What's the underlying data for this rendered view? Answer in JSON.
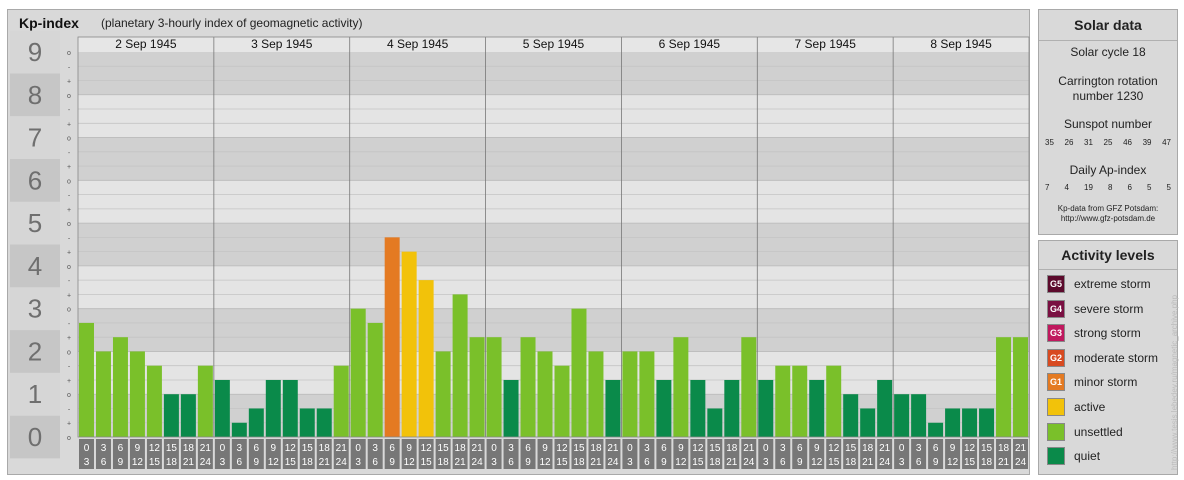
{
  "header": {
    "title": "Kp-index",
    "subtitle": "(planetary 3-hourly index of geomagnetic activity)"
  },
  "chart_data": {
    "type": "bar",
    "title": "Kp-index",
    "subtitle": "(planetary 3-hourly index of geomagnetic activity)",
    "ylim": [
      0,
      9
    ],
    "y_ticks": [
      "0",
      "1",
      "2",
      "3",
      "4",
      "5",
      "6",
      "7",
      "8",
      "9"
    ],
    "y_sub_ticks": [
      "-",
      "o",
      "+"
    ],
    "days": [
      "2 Sep 1945",
      "3 Sep 1945",
      "4 Sep 1945",
      "5 Sep 1945",
      "6 Sep 1945",
      "7 Sep 1945",
      "8 Sep 1945"
    ],
    "interval_labels": [
      [
        "0",
        "3"
      ],
      [
        "3",
        "6"
      ],
      [
        "6",
        "9"
      ],
      [
        "9",
        "12"
      ],
      [
        "12",
        "15"
      ],
      [
        "15",
        "18"
      ],
      [
        "18",
        "21"
      ],
      [
        "21",
        "24"
      ]
    ],
    "values": [
      2.667,
      2.0,
      2.333,
      2.0,
      1.667,
      1.0,
      1.0,
      1.667,
      1.333,
      0.333,
      0.667,
      1.333,
      1.333,
      0.667,
      0.667,
      1.667,
      3.0,
      2.667,
      4.667,
      4.333,
      3.667,
      2.0,
      3.333,
      2.333,
      2.333,
      1.333,
      2.333,
      2.0,
      1.667,
      3.0,
      2.0,
      1.333,
      2.0,
      2.0,
      1.333,
      2.333,
      1.333,
      0.667,
      1.333,
      2.333,
      1.333,
      1.667,
      1.667,
      1.333,
      1.667,
      1.0,
      0.667,
      1.333,
      1.0,
      1.0,
      0.333,
      0.667,
      0.667,
      0.667,
      2.333,
      2.333
    ],
    "grid": true
  },
  "solar": {
    "title": "Solar data",
    "cycle": "Solar cycle 18",
    "carrington_1": "Carrington rotation",
    "carrington_2": "number 1230",
    "sunspot_title": "Sunspot number",
    "sunspot_values": [
      "35",
      "26",
      "31",
      "25",
      "46",
      "39",
      "47"
    ],
    "ap_title": "Daily Ap-index",
    "ap_values": [
      "7",
      "4",
      "19",
      "8",
      "6",
      "5",
      "5"
    ],
    "note_1": "Kp-data from GFZ Potsdam:",
    "note_2": "http://www.gfz-potsdam.de"
  },
  "activity": {
    "title": "Activity levels",
    "levels": [
      {
        "code": "G5",
        "label": "extreme storm",
        "color": "#5c0a2c"
      },
      {
        "code": "G4",
        "label": "severe storm",
        "color": "#7a1042"
      },
      {
        "code": "G3",
        "label": "strong storm",
        "color": "#c0185e"
      },
      {
        "code": "G2",
        "label": "moderate storm",
        "color": "#d84a20"
      },
      {
        "code": "G1",
        "label": "minor storm",
        "color": "#e47a22"
      },
      {
        "code": "",
        "label": "active",
        "color": "#f2c20a"
      },
      {
        "code": "",
        "label": "unsettled",
        "color": "#7ac02a"
      },
      {
        "code": "",
        "label": "quiet",
        "color": "#0a8a4a"
      }
    ]
  },
  "colors": {
    "quiet": "#0a8a4a",
    "unsettled": "#7ac02a",
    "active": "#f2c20a",
    "minor_storm": "#e47a22",
    "moderate_storm": "#d84a20"
  },
  "watermark": "http://www.tesis.lebedev.ru/magnetic_archive.php"
}
